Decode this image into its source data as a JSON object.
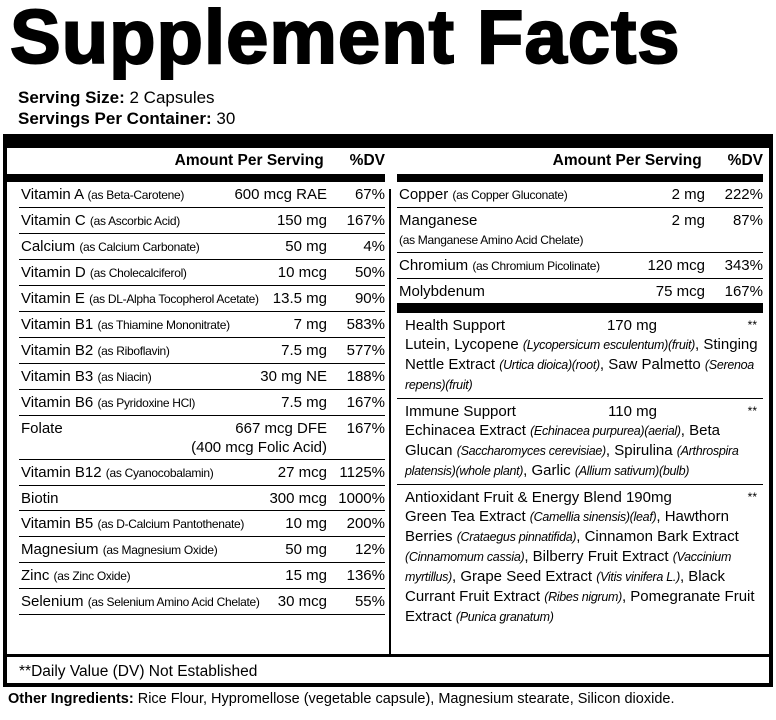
{
  "title": "Supplement Facts",
  "serving_size_label": "Serving Size:",
  "serving_size": "2 Capsules",
  "servings_label": "Servings Per Container:",
  "servings": "30",
  "header": {
    "amount": "Amount Per Serving",
    "dv": "%DV"
  },
  "left": [
    {
      "name": "Vitamin A",
      "source": "(as Beta-Carotene)",
      "amount": "600 mcg RAE",
      "dv": "67%"
    },
    {
      "name": "Vitamin C",
      "source": "(as Ascorbic Acid)",
      "amount": "150 mg",
      "dv": "167%"
    },
    {
      "name": "Calcium",
      "source": "(as Calcium Carbonate)",
      "amount": "50 mg",
      "dv": "4%"
    },
    {
      "name": "Vitamin D",
      "source": "(as Cholecalciferol)",
      "amount": "10 mcg",
      "dv": "50%"
    },
    {
      "name": "Vitamin E",
      "source": "(as DL-Alpha Tocopherol Acetate)",
      "amount": "13.5 mg",
      "dv": "90%"
    },
    {
      "name": "Vitamin B1",
      "source": "(as Thiamine Mononitrate)",
      "amount": "7 mg",
      "dv": "583%"
    },
    {
      "name": "Vitamin B2",
      "source": "(as Riboflavin)",
      "amount": "7.5 mg",
      "dv": "577%"
    },
    {
      "name": "Vitamin B3",
      "source": "(as Niacin)",
      "amount": "30 mg NE",
      "dv": "188%"
    },
    {
      "name": "Vitamin B6",
      "source": "(as Pyridoxine HCl)",
      "amount": "7.5 mg",
      "dv": "167%"
    },
    {
      "name": "Folate",
      "source": "",
      "amount": "667 mcg DFE",
      "amount2": "(400 mcg Folic Acid)",
      "dv": "167%"
    },
    {
      "name": "Vitamin B12",
      "source": "(as Cyanocobalamin)",
      "amount": "27 mcg",
      "dv": "1125%"
    },
    {
      "name": "Biotin",
      "source": "",
      "amount": "300 mcg",
      "dv": "1000%"
    },
    {
      "name": "Vitamin B5",
      "source": "(as D-Calcium Pantothenate)",
      "amount": "10 mg",
      "dv": "200%"
    },
    {
      "name": "Magnesium",
      "source": "(as Magnesium Oxide)",
      "amount": "50 mg",
      "dv": "12%"
    },
    {
      "name": "Zinc",
      "source": "(as Zinc Oxide)",
      "amount": "15 mg",
      "dv": "136%"
    },
    {
      "name": "Selenium",
      "source": "(as Selenium Amino Acid Chelate)",
      "amount": "30 mcg",
      "dv": "55%"
    }
  ],
  "right": [
    {
      "name": "Copper",
      "source": "(as Copper Gluconate)",
      "amount": "2 mg",
      "dv": "222%"
    },
    {
      "name": "Manganese",
      "source2": "(as Manganese Amino Acid Chelate)",
      "amount": "2 mg",
      "dv": "87%"
    },
    {
      "name": "Chromium",
      "source": "(as Chromium Picolinate)",
      "amount": "120 mcg",
      "dv": "343%"
    },
    {
      "name": "Molybdenum",
      "source": "",
      "amount": "75 mcg",
      "dv": "167%"
    }
  ],
  "blends": [
    {
      "name": "Health Support",
      "amount": "170 mg",
      "dv": "**",
      "parts": [
        [
          "Lutein, Lycopene ",
          "(Lycopersicum esculentum)(fruit)"
        ],
        [
          ", Stinging Nettle Extract ",
          "(Urtica dioica)(root)"
        ],
        [
          ", Saw Palmetto ",
          "(Serenoa repens)(fruit)"
        ]
      ]
    },
    {
      "name": "Immune Support",
      "amount": "110 mg",
      "dv": "**",
      "parts": [
        [
          "Echinacea Extract ",
          "(Echinacea purpurea)(aerial)"
        ],
        [
          ", Beta Glucan ",
          "(Saccharomyces cerevisiae)"
        ],
        [
          ", Spirulina ",
          "(Arthrospira platensis)(whole plant)"
        ],
        [
          ", Garlic ",
          "(Allium sativum)(bulb)"
        ]
      ]
    },
    {
      "name": "Antioxidant Fruit & Energy Blend",
      "amount": "190mg",
      "dv": "**",
      "parts": [
        [
          "Green Tea Extract ",
          "(Camellia sinensis)(leaf)"
        ],
        [
          ", Hawthorn Berries ",
          "(Crataegus pinnatifida)"
        ],
        [
          ", Cinnamon Bark Extract ",
          "(Cinnamomum cassia)"
        ],
        [
          ", Bilberry Fruit Extract ",
          "(Vaccinium myrtillus)"
        ],
        [
          ", Grape Seed Extract ",
          "(Vitis vinifera L.)"
        ],
        [
          ", Black Currant Fruit Extract ",
          "(Ribes nigrum)"
        ],
        [
          ", Pomegranate Fruit Extract ",
          "(Punica granatum)"
        ]
      ]
    }
  ],
  "footnote": "**Daily Value (DV) Not Established",
  "other_label": "Other Ingredients:",
  "other": "Rice Flour, Hypromellose (vegetable capsule), Magnesium stearate, Silicon dioxide."
}
